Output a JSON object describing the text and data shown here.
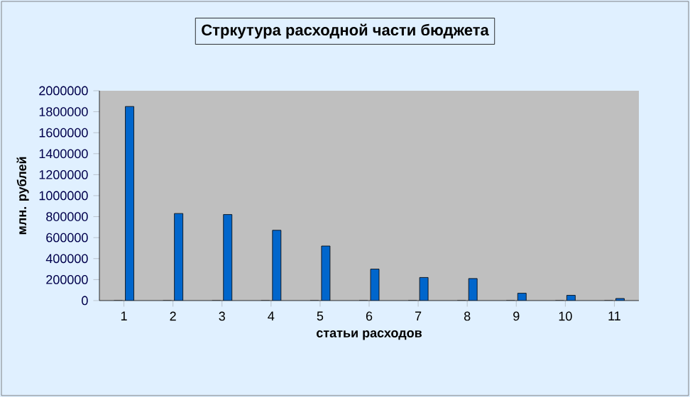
{
  "chart_data": {
    "type": "bar",
    "title": "Стркутура расходной части бюджета",
    "xlabel": "статьи расходов",
    "ylabel": "млн. рублей",
    "categories": [
      "1",
      "2",
      "3",
      "4",
      "5",
      "6",
      "7",
      "8",
      "9",
      "10",
      "11"
    ],
    "series": [
      {
        "color": "#9999ff",
        "values": [
          0,
          0,
          0,
          0,
          0,
          0,
          0,
          0,
          0,
          0,
          0
        ]
      },
      {
        "color": "#0066cc",
        "values": [
          1850000,
          830000,
          820000,
          670000,
          520000,
          300000,
          220000,
          210000,
          70000,
          50000,
          20000
        ]
      }
    ],
    "ylim": [
      0,
      2000000
    ],
    "yticks": [
      0,
      200000,
      400000,
      600000,
      800000,
      1000000,
      1200000,
      1400000,
      1600000,
      1800000,
      2000000
    ]
  }
}
